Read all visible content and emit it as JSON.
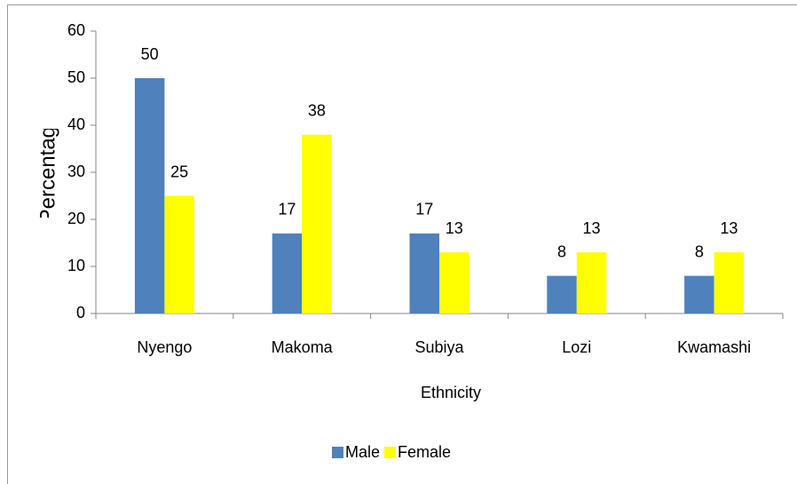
{
  "chart_data": {
    "type": "bar",
    "categories": [
      "Nyengo",
      "Makoma",
      "Subiya",
      "Lozi",
      "Kwamashi"
    ],
    "series": [
      {
        "name": "Male",
        "color": "#4f81bd",
        "values": [
          50,
          17,
          17,
          8,
          8
        ]
      },
      {
        "name": "Female",
        "color": "#ffff00",
        "values": [
          25,
          38,
          13,
          13,
          13
        ]
      }
    ],
    "x_label": "Ethnicity",
    "y_label": "Percentage",
    "ylim": [
      0,
      60
    ],
    "yticks": [
      0,
      10,
      20,
      30,
      40,
      50,
      60
    ],
    "grid": false,
    "legend": "bottom"
  }
}
